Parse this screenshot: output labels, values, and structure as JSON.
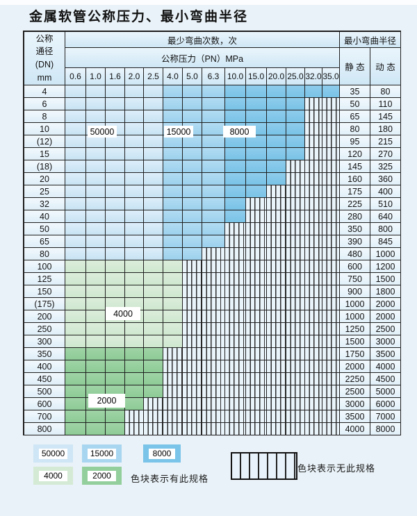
{
  "title": "金属软管公称压力、最小弯曲半径",
  "table": {
    "corner": [
      "公称",
      "通径",
      "(DN)",
      "mm"
    ],
    "bend_cycles_header": "最少弯曲次数，次",
    "pressure_header": "公称压力（PN）MPa",
    "radius_header": "最小弯曲半径",
    "static_label": "静 态",
    "dynamic_label": "动 态",
    "pressure_columns": [
      "0.6",
      "1.0",
      "1.6",
      "2.0",
      "2.5",
      "4.0",
      "5.0",
      "6.3",
      "10.0",
      "15.0",
      "20.0",
      "25.0",
      "32.0",
      "35.0"
    ],
    "rows": [
      {
        "dn": "4",
        "colored": 14,
        "group": "blue",
        "static": "35",
        "dynamic": "80"
      },
      {
        "dn": "6",
        "colored": 12,
        "group": "blue",
        "static": "50",
        "dynamic": "110"
      },
      {
        "dn": "8",
        "colored": 12,
        "group": "blue",
        "static": "65",
        "dynamic": "145"
      },
      {
        "dn": "10",
        "colored": 12,
        "group": "blue",
        "static": "80",
        "dynamic": "180"
      },
      {
        "dn": "(12)",
        "colored": 12,
        "group": "blue",
        "static": "95",
        "dynamic": "215"
      },
      {
        "dn": "15",
        "colored": 12,
        "group": "blue",
        "static": "120",
        "dynamic": "270"
      },
      {
        "dn": "(18)",
        "colored": 11,
        "group": "blue",
        "static": "145",
        "dynamic": "325"
      },
      {
        "dn": "20",
        "colored": 11,
        "group": "blue",
        "static": "160",
        "dynamic": "360"
      },
      {
        "dn": "25",
        "colored": 10,
        "group": "blue",
        "static": "175",
        "dynamic": "400"
      },
      {
        "dn": "32",
        "colored": 9,
        "group": "blue",
        "static": "225",
        "dynamic": "510"
      },
      {
        "dn": "40",
        "colored": 9,
        "group": "blue",
        "static": "280",
        "dynamic": "640"
      },
      {
        "dn": "50",
        "colored": 8,
        "group": "blue",
        "static": "350",
        "dynamic": "800"
      },
      {
        "dn": "65",
        "colored": 8,
        "group": "blue",
        "static": "390",
        "dynamic": "845"
      },
      {
        "dn": "80",
        "colored": 7,
        "group": "blue",
        "static": "480",
        "dynamic": "1000"
      },
      {
        "dn": "100",
        "colored": 6,
        "group": "green-light",
        "static": "600",
        "dynamic": "1200"
      },
      {
        "dn": "125",
        "colored": 6,
        "group": "green-light",
        "static": "750",
        "dynamic": "1500"
      },
      {
        "dn": "150",
        "colored": 6,
        "group": "green-light",
        "static": "900",
        "dynamic": "1800"
      },
      {
        "dn": "(175)",
        "colored": 6,
        "group": "green-light",
        "static": "1000",
        "dynamic": "2000"
      },
      {
        "dn": "200",
        "colored": 6,
        "group": "green-light",
        "static": "1000",
        "dynamic": "2000"
      },
      {
        "dn": "250",
        "colored": 6,
        "group": "green-light",
        "static": "1250",
        "dynamic": "2500"
      },
      {
        "dn": "300",
        "colored": 6,
        "group": "green-light",
        "static": "1500",
        "dynamic": "3000"
      },
      {
        "dn": "350",
        "colored": 5,
        "group": "green-dark",
        "static": "1750",
        "dynamic": "3500"
      },
      {
        "dn": "400",
        "colored": 5,
        "group": "green-dark",
        "static": "2000",
        "dynamic": "4000"
      },
      {
        "dn": "450",
        "colored": 5,
        "group": "green-dark",
        "static": "2250",
        "dynamic": "4500"
      },
      {
        "dn": "500",
        "colored": 5,
        "group": "green-dark",
        "static": "2500",
        "dynamic": "5000"
      },
      {
        "dn": "600",
        "colored": 4,
        "group": "green-dark",
        "static": "3000",
        "dynamic": "6000"
      },
      {
        "dn": "700",
        "colored": 3,
        "group": "green-dark",
        "static": "3500",
        "dynamic": "7000"
      },
      {
        "dn": "800",
        "colored": 3,
        "group": "green-dark",
        "static": "4000",
        "dynamic": "8000"
      }
    ]
  },
  "overlay_labels": [
    {
      "text": "50000"
    },
    {
      "text": "15000"
    },
    {
      "text": "8000"
    },
    {
      "text": "4000"
    },
    {
      "text": "2000"
    }
  ],
  "legend": {
    "items": [
      {
        "value": "50000"
      },
      {
        "value": "15000"
      },
      {
        "value": "8000"
      },
      {
        "value": "4000"
      },
      {
        "value": "2000"
      }
    ],
    "has_spec_note": "色块表示有此规格",
    "no_spec_note": "色块表示无此规格"
  },
  "colors": {
    "cycles_50000": "#cfe6f6",
    "cycles_15000": "#a8d6f0",
    "cycles_8000": "#79c4e8",
    "cycles_4000": "#d4ead4",
    "cycles_2000": "#93cf9c",
    "page_background": "#e9f2f8",
    "grid_line": "#1f1f1f"
  }
}
